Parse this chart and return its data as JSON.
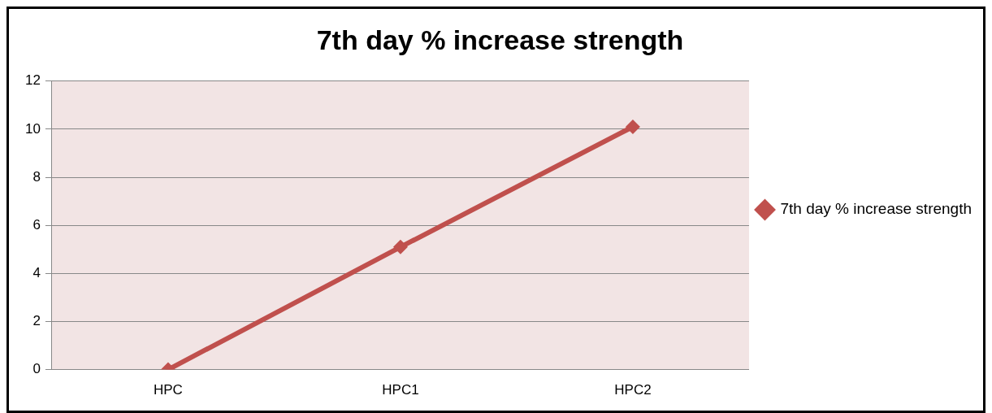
{
  "chart_data": {
    "type": "line",
    "title": "7th day % increase strength",
    "categories": [
      "HPC",
      "HPC1",
      "HPC2"
    ],
    "series": [
      {
        "name": "7th day % increase strength",
        "color": "#c0504d",
        "values": [
          0,
          5.1,
          10.1
        ]
      }
    ],
    "ylim": [
      0,
      12
    ],
    "yticks": [
      0,
      2,
      4,
      6,
      8,
      10,
      12
    ],
    "grid": "y",
    "legend": "right",
    "marker": "diamond",
    "line_style": "solid"
  }
}
